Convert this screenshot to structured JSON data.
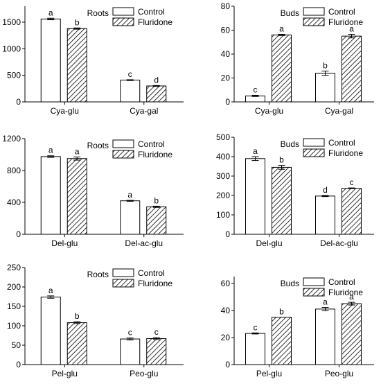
{
  "legend": {
    "control": "Control",
    "fluridone": "Fluridone"
  },
  "colors": {
    "axis": "#000000",
    "bar_fill": "#ffffff",
    "hatch": "#000000",
    "background": "#ffffff"
  },
  "chart_data": [
    {
      "type": "bar",
      "title": "Roots",
      "categories": [
        "Cya-glu",
        "Cya-gal"
      ],
      "series": [
        {
          "name": "Control",
          "values": [
            1560,
            410
          ],
          "errors": [
            15,
            8
          ],
          "labels": [
            "a",
            "c"
          ]
        },
        {
          "name": "Fluridone",
          "values": [
            1380,
            300
          ],
          "errors": [
            12,
            8
          ],
          "labels": [
            "b",
            "d"
          ]
        }
      ],
      "ylim": [
        0,
        1800
      ],
      "yticks": [
        0,
        500,
        1000,
        1500
      ],
      "legend_position": "top-right",
      "xlabel": "",
      "ylabel": ""
    },
    {
      "type": "bar",
      "title": "Buds",
      "categories": [
        "Cya-glu",
        "Cya-gal"
      ],
      "series": [
        {
          "name": "Control",
          "values": [
            5,
            24
          ],
          "errors": [
            0.5,
            1.8
          ],
          "labels": [
            "c",
            "b"
          ]
        },
        {
          "name": "Fluridone",
          "values": [
            56,
            55
          ],
          "errors": [
            0.5,
            1.5
          ],
          "labels": [
            "a",
            "a"
          ]
        }
      ],
      "ylim": [
        0,
        80
      ],
      "yticks": [
        0,
        20,
        40,
        60,
        80
      ],
      "legend_position": "top-right",
      "xlabel": "",
      "ylabel": ""
    },
    {
      "type": "bar",
      "title": "Roots",
      "categories": [
        "Del-glu",
        "Del-ac-glu"
      ],
      "series": [
        {
          "name": "Control",
          "values": [
            975,
            420
          ],
          "errors": [
            10,
            6
          ],
          "labels": [
            "a",
            "a"
          ]
        },
        {
          "name": "Fluridone",
          "values": [
            950,
            345
          ],
          "errors": [
            20,
            8
          ],
          "labels": [
            "a",
            "b"
          ]
        }
      ],
      "ylim": [
        0,
        1200
      ],
      "yticks": [
        0,
        400,
        800,
        1200
      ],
      "legend_position": "top-right",
      "xlabel": "",
      "ylabel": ""
    },
    {
      "type": "bar",
      "title": "Buds",
      "categories": [
        "Del-glu",
        "Del-ac-glu"
      ],
      "series": [
        {
          "name": "Control",
          "values": [
            390,
            197
          ],
          "errors": [
            10,
            3
          ],
          "labels": [
            "a",
            "d"
          ]
        },
        {
          "name": "Fluridone",
          "values": [
            345,
            237
          ],
          "errors": [
            10,
            2
          ],
          "labels": [
            "b",
            "c"
          ]
        }
      ],
      "ylim": [
        0,
        500
      ],
      "yticks": [
        0,
        100,
        200,
        300,
        400,
        500
      ],
      "legend_position": "top-right",
      "xlabel": "",
      "ylabel": ""
    },
    {
      "type": "bar",
      "title": "Roots",
      "categories": [
        "Pel-glu",
        "Peo-glu"
      ],
      "series": [
        {
          "name": "Control",
          "values": [
            174,
            66
          ],
          "errors": [
            3,
            2.5
          ],
          "labels": [
            "a",
            "c"
          ]
        },
        {
          "name": "Fluridone",
          "values": [
            108,
            67
          ],
          "errors": [
            2.5,
            2.5
          ],
          "labels": [
            "b",
            "c"
          ]
        }
      ],
      "ylim": [
        0,
        250
      ],
      "yticks": [
        0,
        50,
        100,
        150,
        200,
        250
      ],
      "legend_position": "top-right",
      "xlabel": "",
      "ylabel": ""
    },
    {
      "type": "bar",
      "title": "Buds",
      "categories": [
        "Pel-glu",
        "Peo-glu"
      ],
      "series": [
        {
          "name": "Control",
          "values": [
            23,
            41
          ],
          "errors": [
            0.4,
            1.2
          ],
          "labels": [
            "c",
            "a"
          ]
        },
        {
          "name": "Fluridone",
          "values": [
            35,
            45
          ],
          "errors": [
            0,
            1.0
          ],
          "labels": [
            "b",
            "a"
          ]
        }
      ],
      "ylim": [
        0,
        65
      ],
      "yticks": [
        0,
        20,
        40,
        60
      ],
      "legend_position": "top-right",
      "xlabel": "",
      "ylabel": ""
    }
  ]
}
